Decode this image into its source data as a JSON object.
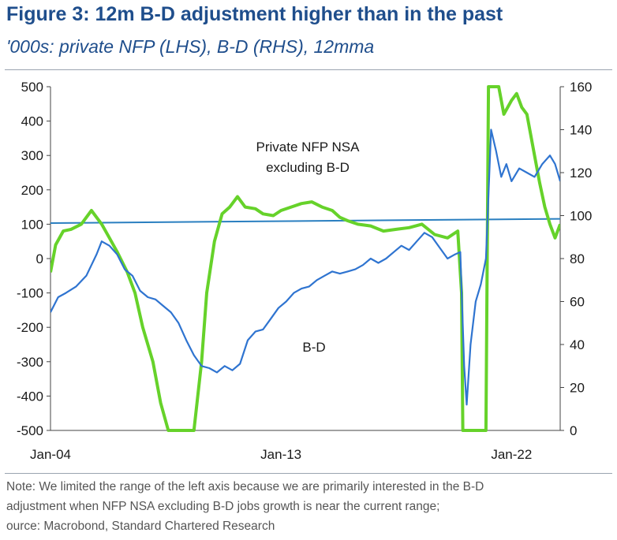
{
  "header": {
    "title": "Figure 3: 12m B-D adjustment higher than in the past",
    "subtitle": "'000s: private NFP (LHS), B-D (RHS), 12mma"
  },
  "footer": {
    "note_line1": "Note: We limited the range of the left axis because we are primarily interested in the B-D",
    "note_line2": "adjustment when NFP NSA excluding B-D jobs growth is near the current range;",
    "note_line3": "ource: Macrobond, Standard Chartered Research"
  },
  "chart_data": {
    "type": "line",
    "title": "Figure 3: 12m B-D adjustment higher than in the past",
    "subtitle": "'000s: private NFP (LHS), B-D (RHS), 12mma",
    "x_ticks": [
      "Jan-04",
      "Jan-13",
      "Jan-22"
    ],
    "x_range": [
      2004.0,
      2023.9
    ],
    "left_axis": {
      "range": [
        -500,
        500
      ],
      "ticks": [
        -500,
        -400,
        -300,
        -200,
        -100,
        0,
        100,
        200,
        300,
        400,
        500
      ]
    },
    "right_axis": {
      "range": [
        0,
        160
      ],
      "ticks": [
        0,
        20,
        40,
        60,
        80,
        100,
        120,
        140,
        160
      ]
    },
    "grid": false,
    "colors": {
      "nfp": "#66d22a",
      "bd": "#2f74d0",
      "reference_line": "#2a7fc0"
    },
    "annotations": [
      {
        "text": "Private NFP NSA",
        "series": "nfp"
      },
      {
        "text": "excluding B-D",
        "series": "nfp"
      },
      {
        "text": "B-D",
        "series": "bd"
      }
    ],
    "reference_line": {
      "axis": "right",
      "y_start": 96.5,
      "y_end": 98.5
    },
    "series": [
      {
        "name": "Private NFP NSA excluding B-D",
        "axis": "left",
        "x": [
          2004.0,
          2004.2,
          2004.5,
          2004.8,
          2005.2,
          2005.6,
          2006.0,
          2006.3,
          2006.6,
          2007.0,
          2007.3,
          2007.6,
          2008.0,
          2008.3,
          2008.6,
          2008.9,
          2009.0,
          2009.3,
          2009.6,
          2009.9,
          2010.1,
          2010.4,
          2010.7,
          2011.0,
          2011.3,
          2011.6,
          2012.0,
          2012.3,
          2012.7,
          2013.0,
          2013.4,
          2013.8,
          2014.2,
          2014.6,
          2015.0,
          2015.3,
          2015.6,
          2016.0,
          2016.5,
          2017.0,
          2017.5,
          2018.0,
          2018.5,
          2019.0,
          2019.5,
          2019.9,
          2020.05,
          2020.1,
          2020.2,
          2021.0,
          2021.1,
          2021.3,
          2021.5,
          2021.7,
          2022.0,
          2022.2,
          2022.4,
          2022.6,
          2022.9,
          2023.1,
          2023.3,
          2023.5,
          2023.7,
          2023.9
        ],
        "values": [
          -40,
          40,
          80,
          85,
          100,
          140,
          100,
          60,
          20,
          -40,
          -100,
          -200,
          -300,
          -420,
          -500,
          -500,
          -500,
          -500,
          -500,
          -300,
          -100,
          50,
          130,
          150,
          180,
          150,
          145,
          130,
          125,
          140,
          150,
          160,
          165,
          150,
          140,
          120,
          110,
          100,
          95,
          80,
          85,
          90,
          100,
          70,
          60,
          80,
          -100,
          -500,
          -500,
          -500,
          500,
          500,
          500,
          420,
          460,
          480,
          440,
          420,
          300,
          220,
          150,
          100,
          60,
          100
        ]
      },
      {
        "name": "B-D",
        "axis": "right",
        "x": [
          2004.0,
          2004.3,
          2004.6,
          2005.0,
          2005.4,
          2005.8,
          2006.0,
          2006.3,
          2006.6,
          2006.9,
          2007.2,
          2007.5,
          2007.8,
          2008.1,
          2008.4,
          2008.7,
          2009.0,
          2009.3,
          2009.6,
          2009.9,
          2010.2,
          2010.5,
          2010.8,
          2011.1,
          2011.4,
          2011.7,
          2012.0,
          2012.3,
          2012.6,
          2012.9,
          2013.2,
          2013.5,
          2013.8,
          2014.1,
          2014.4,
          2014.7,
          2015.0,
          2015.3,
          2015.6,
          2015.9,
          2016.2,
          2016.5,
          2016.8,
          2017.1,
          2017.4,
          2017.7,
          2018.0,
          2018.3,
          2018.6,
          2018.9,
          2019.2,
          2019.5,
          2019.8,
          2020.0,
          2020.15,
          2020.25,
          2020.4,
          2020.6,
          2020.8,
          2021.0,
          2021.2,
          2021.4,
          2021.6,
          2021.8,
          2022.0,
          2022.3,
          2022.6,
          2022.9,
          2023.2,
          2023.5,
          2023.7,
          2023.9
        ],
        "values": [
          55,
          62,
          64,
          67,
          72,
          82,
          88,
          86,
          82,
          75,
          72,
          65,
          62,
          61,
          58,
          55,
          50,
          42,
          35,
          30,
          29,
          27,
          30,
          28,
          31,
          42,
          46,
          47,
          52,
          57,
          60,
          64,
          66,
          67,
          70,
          72,
          74,
          73,
          74,
          75,
          77,
          80,
          78,
          80,
          83,
          86,
          84,
          88,
          92,
          90,
          85,
          80,
          82,
          83,
          30,
          12,
          40,
          60,
          68,
          80,
          140,
          130,
          118,
          124,
          116,
          122,
          120,
          118,
          124,
          128,
          124,
          116
        ]
      }
    ]
  }
}
